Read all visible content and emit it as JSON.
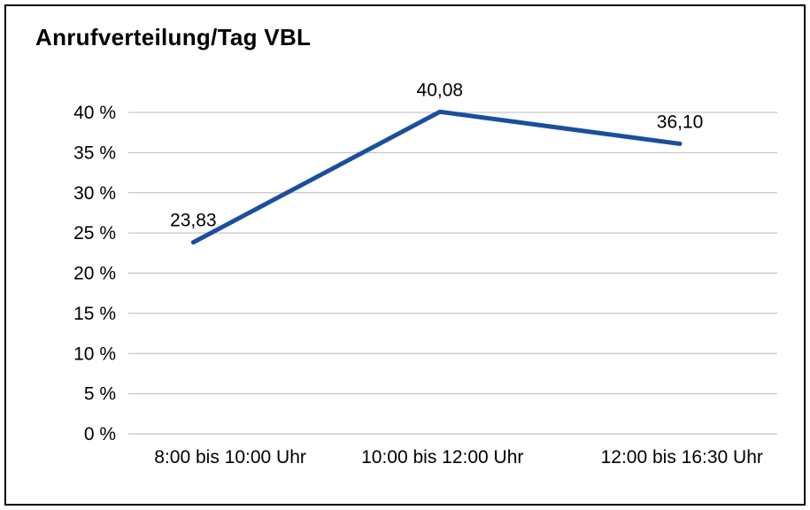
{
  "title": "Anrufverteilung/Tag VBL",
  "chart_data": {
    "type": "line",
    "title": "Anrufverteilung/Tag VBL",
    "categories": [
      "8:00 bis 10:00 Uhr",
      "10:00 bis 12:00 Uhr",
      "12:00 bis 16:30 Uhr"
    ],
    "values": [
      23.83,
      40.08,
      36.1
    ],
    "value_labels": [
      "23,83",
      "40,08",
      "36,10"
    ],
    "xlabel": "",
    "ylabel": "",
    "ylim": [
      0,
      40
    ],
    "ytick_step": 5,
    "ytick_labels": [
      "0 %",
      "5 %",
      "10 %",
      "15 %",
      "20 %",
      "25 %",
      "30 %",
      "35 %",
      "40 %"
    ],
    "grid": true,
    "legend": "none"
  },
  "colors": {
    "line": "#1a4f9d",
    "grid": "#b9b9b9",
    "border": "#000000",
    "background": "#ffffff",
    "text": "#000000"
  }
}
